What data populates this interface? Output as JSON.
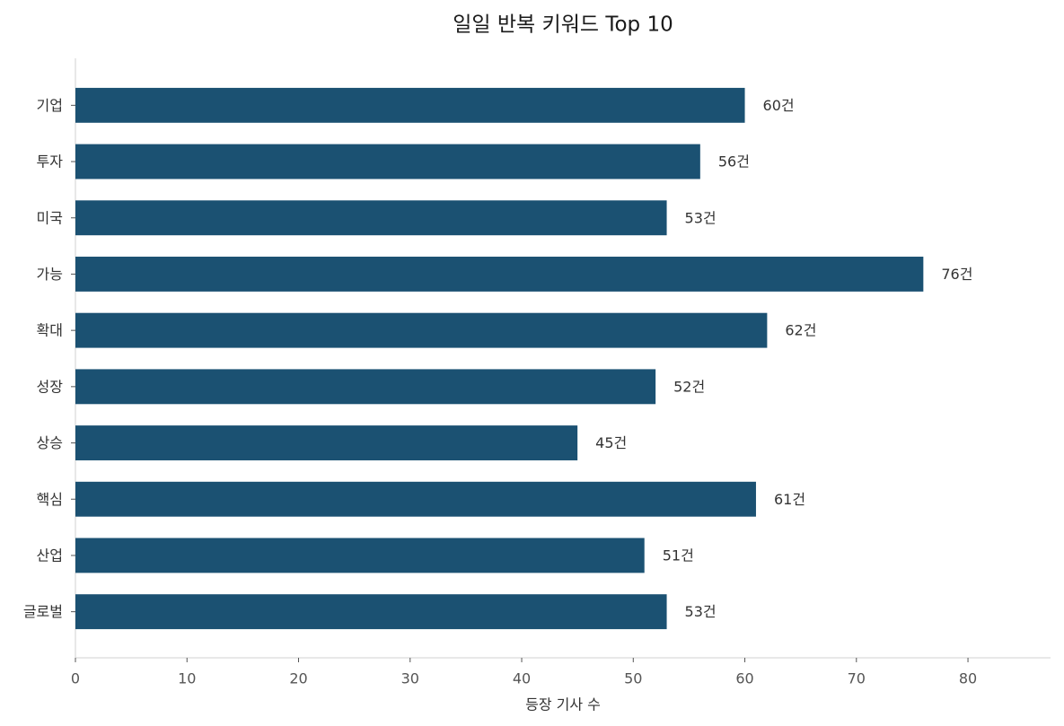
{
  "chart_data": {
    "type": "bar",
    "orientation": "horizontal",
    "title": "일일 반복 키워드 Top 10",
    "categories": [
      "기업",
      "투자",
      "미국",
      "가능",
      "확대",
      "성장",
      "상승",
      "핵심",
      "산업",
      "글로벌"
    ],
    "values": [
      60,
      56,
      53,
      76,
      62,
      52,
      45,
      61,
      51,
      53
    ],
    "value_labels": [
      "60건",
      "56건",
      "53건",
      "76건",
      "62건",
      "52건",
      "45건",
      "61건",
      "51건",
      "53건"
    ],
    "color": "#1b5172",
    "x_label": "등장 기사 수",
    "xlim": [
      0,
      87.4
    ],
    "xticks": [
      0,
      10,
      20,
      30,
      40,
      50,
      60,
      70,
      80
    ],
    "grid": false
  }
}
